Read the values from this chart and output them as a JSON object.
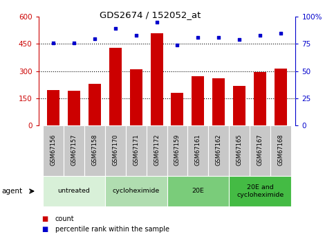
{
  "title": "GDS2674 / 152052_at",
  "samples": [
    "GSM67156",
    "GSM67157",
    "GSM67158",
    "GSM67170",
    "GSM67171",
    "GSM67172",
    "GSM67159",
    "GSM67161",
    "GSM67162",
    "GSM67165",
    "GSM67167",
    "GSM67168"
  ],
  "bar_values": [
    195,
    192,
    230,
    430,
    310,
    510,
    182,
    270,
    262,
    218,
    295,
    312
  ],
  "dot_values": [
    76,
    76,
    80,
    89,
    83,
    95,
    74,
    81,
    81,
    79,
    83,
    85
  ],
  "bar_color": "#cc0000",
  "dot_color": "#0000cc",
  "left_ylim": [
    0,
    600
  ],
  "right_ylim": [
    0,
    100
  ],
  "left_yticks": [
    0,
    150,
    300,
    450,
    600
  ],
  "right_yticks": [
    0,
    25,
    50,
    75,
    100
  ],
  "left_yticklabels": [
    "0",
    "150",
    "300",
    "450",
    "600"
  ],
  "right_yticklabels": [
    "0",
    "25",
    "50",
    "75",
    "100%"
  ],
  "groups": [
    {
      "label": "untreated",
      "start": 0,
      "end": 3,
      "color": "#d8f0d8"
    },
    {
      "label": "cycloheximide",
      "start": 3,
      "end": 6,
      "color": "#b0ddb0"
    },
    {
      "label": "20E",
      "start": 6,
      "end": 9,
      "color": "#7acc7a"
    },
    {
      "label": "20E and\ncycloheximide",
      "start": 9,
      "end": 12,
      "color": "#44bb44"
    }
  ],
  "tick_bg_color": "#c8c8c8",
  "agent_label": "agent"
}
